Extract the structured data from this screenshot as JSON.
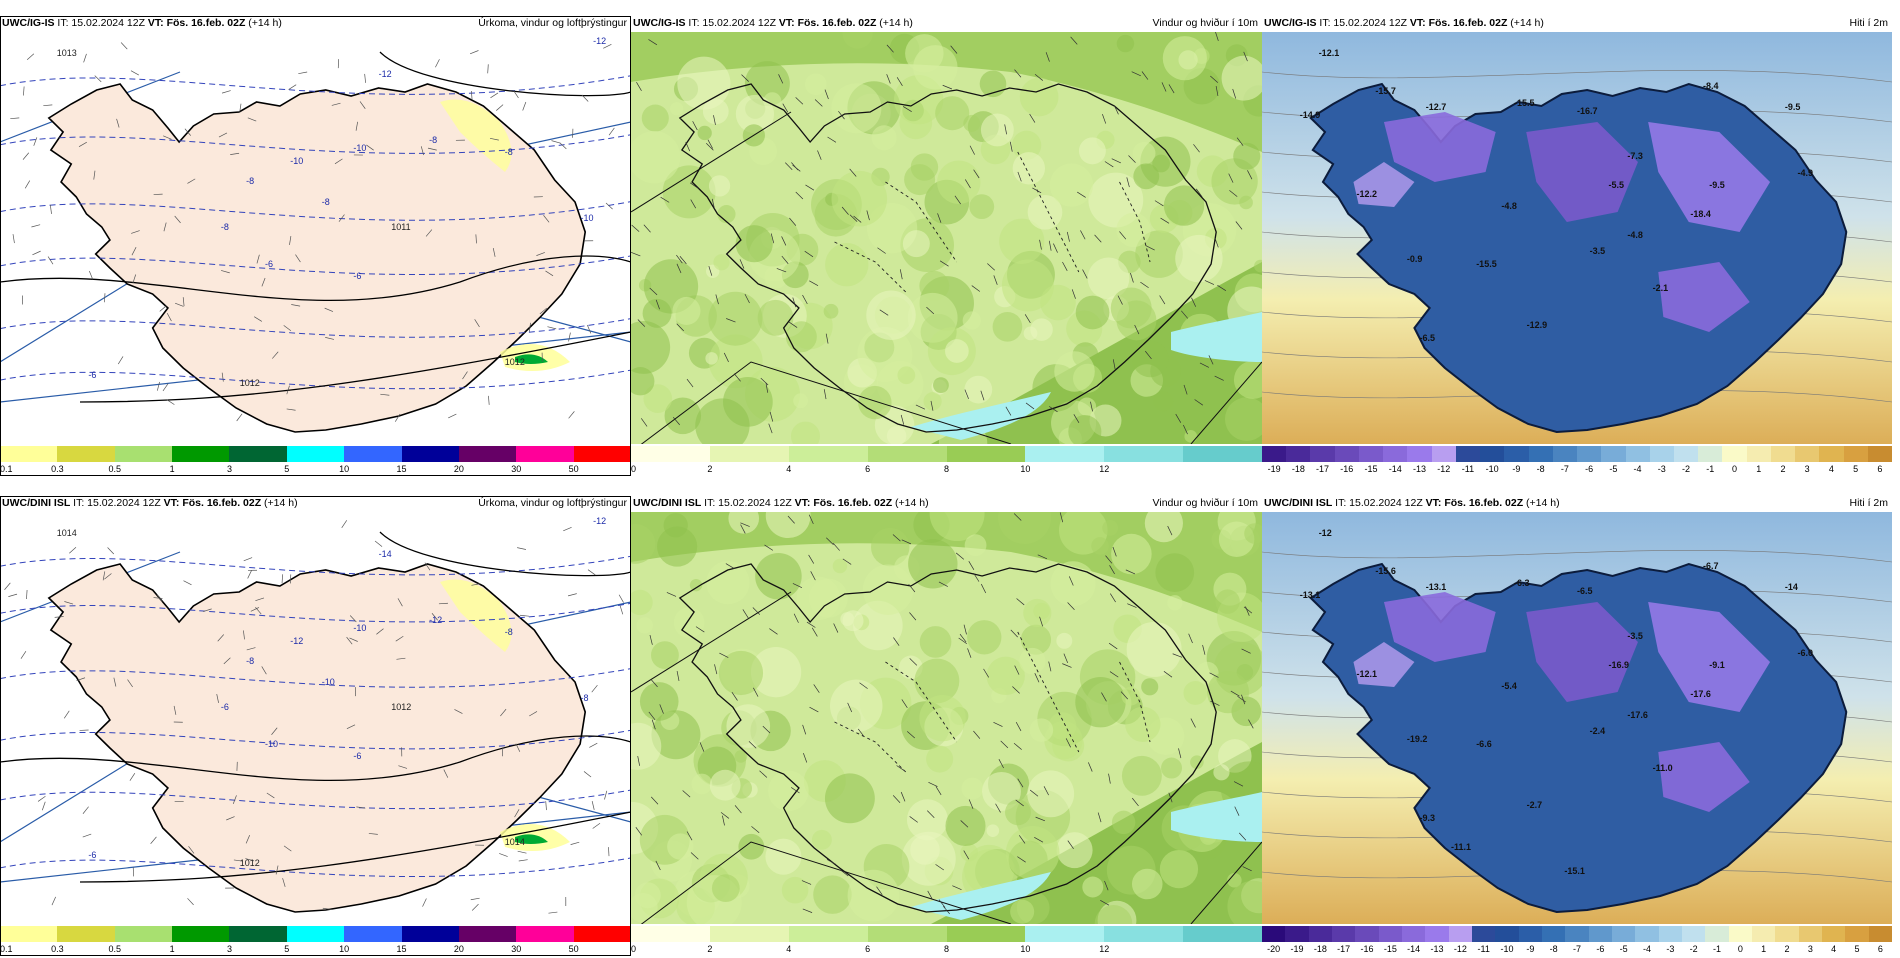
{
  "rows": [
    {
      "model": "UWC/IG-IS",
      "issue": "IT: 15.02.2024 12Z",
      "valid_prefix": "VT:",
      "valid": "Fös. 16.feb. 02Z",
      "lead": "(+14 h)",
      "panels": [
        {
          "title": "Úrkoma, vindur og loftþrýstingur",
          "colors": [
            "#ffff99",
            "#d8d840",
            "#a8e070",
            "#009900",
            "#006633",
            "#00ffff",
            "#3366ff",
            "#000099",
            "#660066",
            "#ff0099",
            "#ff0000"
          ],
          "ticks": [
            "0.1",
            "0.3",
            "0.5",
            "1",
            "3",
            "5",
            "10",
            "15",
            "20",
            "30",
            "50"
          ],
          "pressure_labels": [
            "1013",
            "1011",
            "1012",
            "1012"
          ],
          "temp_labels": [
            "-12",
            "-12",
            "-10",
            "-8",
            "-10",
            "-8",
            "-8",
            "-8",
            "-6",
            "-6",
            "-8",
            "-10",
            "-6"
          ]
        },
        {
          "title": "Vindur og hviður í 10m",
          "colors": [
            "#ffffe6",
            "#e6f5b3",
            "#ccee99",
            "#b3dd77",
            "#99cc55",
            "#aaf0f0",
            "#88e0e0",
            "#66cccc"
          ],
          "ticks": [
            "0",
            "2",
            "4",
            "6",
            "8",
            "10",
            "12"
          ]
        },
        {
          "title": "Hiti í 2m",
          "colors": [
            "#3a1a8a",
            "#4a2a9a",
            "#5a3aaa",
            "#6a4aba",
            "#7a5acb",
            "#8a6adb",
            "#9a7aeb",
            "#b89ef0",
            "#2c4a9a",
            "#234e9a",
            "#2b5ea8",
            "#3470b4",
            "#4a84c0",
            "#6098cc",
            "#78acd8",
            "#90c0e2",
            "#a8d2ea",
            "#c0e0ee",
            "#d8ecd8",
            "#fafac8",
            "#f5ecb0",
            "#f0dc90",
            "#e8c870",
            "#e0b450",
            "#d8a040",
            "#c88c30"
          ],
          "ticks": [
            "-19",
            "-18",
            "-17",
            "-16",
            "-15",
            "-14",
            "-13",
            "-12",
            "-11",
            "-10",
            "-9",
            "-8",
            "-7",
            "-6",
            "-5",
            "-4",
            "-3",
            "-2",
            "-1",
            "0",
            "1",
            "2",
            "3",
            "4",
            "5",
            "6"
          ],
          "value_labels": [
            "-12.1",
            "-15.7",
            "-14.9",
            "-12.7",
            "-15.5",
            "-16.7",
            "-8.4",
            "-9.5",
            "-7.3",
            "-5.5",
            "-9.5",
            "-4.9",
            "-12.2",
            "-4.8",
            "-15.5",
            "-4.8",
            "-18.4",
            "-0.9",
            "-3.5",
            "-6.5",
            "-2.1",
            "-12.9"
          ]
        }
      ]
    },
    {
      "model": "UWC/DINI ISL",
      "issue": "IT: 15.02.2024 12Z",
      "valid_prefix": "VT:",
      "valid": "Fös. 16.feb. 02Z",
      "lead": "(+14 h)",
      "panels": [
        {
          "title": "Úrkoma, vindur og loftþrýstingur",
          "colors": [
            "#ffff99",
            "#d8d840",
            "#a8e070",
            "#009900",
            "#006633",
            "#00ffff",
            "#3366ff",
            "#000099",
            "#660066",
            "#ff0099",
            "#ff0000"
          ],
          "ticks": [
            "0.1",
            "0.3",
            "0.5",
            "1",
            "3",
            "5",
            "10",
            "15",
            "20",
            "30",
            "50"
          ],
          "pressure_labels": [
            "1014",
            "1012",
            "1012",
            "1014"
          ],
          "temp_labels": [
            "-12",
            "-14",
            "-10",
            "-12",
            "-12",
            "-10",
            "-8",
            "-6",
            "-10",
            "-6",
            "-8",
            "-8",
            "-6"
          ]
        },
        {
          "title": "Vindur og hviður í 10m",
          "colors": [
            "#ffffe6",
            "#e6f5b3",
            "#ccee99",
            "#b3dd77",
            "#99cc55",
            "#aaf0f0",
            "#88e0e0",
            "#66cccc"
          ],
          "ticks": [
            "0",
            "2",
            "4",
            "6",
            "8",
            "10",
            "12"
          ]
        },
        {
          "title": "Hiti í 2m",
          "colors": [
            "#2a0a7a",
            "#3a1a8a",
            "#4a2a9a",
            "#5a3aaa",
            "#6a4aba",
            "#7a5acb",
            "#8a6adb",
            "#9a7aeb",
            "#b89ef0",
            "#2c4a9a",
            "#234e9a",
            "#2b5ea8",
            "#3470b4",
            "#4a84c0",
            "#6098cc",
            "#78acd8",
            "#90c0e2",
            "#a8d2ea",
            "#c0e0ee",
            "#d8ecd8",
            "#fafac8",
            "#f5ecb0",
            "#f0dc90",
            "#e8c870",
            "#e0b450",
            "#d8a040",
            "#c88c30"
          ],
          "ticks": [
            "-20",
            "-19",
            "-18",
            "-17",
            "-16",
            "-15",
            "-14",
            "-13",
            "-12",
            "-11",
            "-10",
            "-9",
            "-8",
            "-7",
            "-6",
            "-5",
            "-4",
            "-3",
            "-2",
            "-1",
            "0",
            "1",
            "2",
            "3",
            "4",
            "5",
            "6"
          ],
          "value_labels": [
            "-12",
            "-15.6",
            "-13.1",
            "-13.1",
            "-6.3",
            "-6.5",
            "-6.7",
            "-14",
            "-3.5",
            "-16.9",
            "-9.1",
            "-6.0",
            "-12.1",
            "-5.4",
            "-6.6",
            "-17.6",
            "-17.6",
            "-19.2",
            "-2.4",
            "-9.3",
            "-11.0",
            "-2.7",
            "-11.1",
            "-15.1"
          ]
        }
      ]
    }
  ]
}
